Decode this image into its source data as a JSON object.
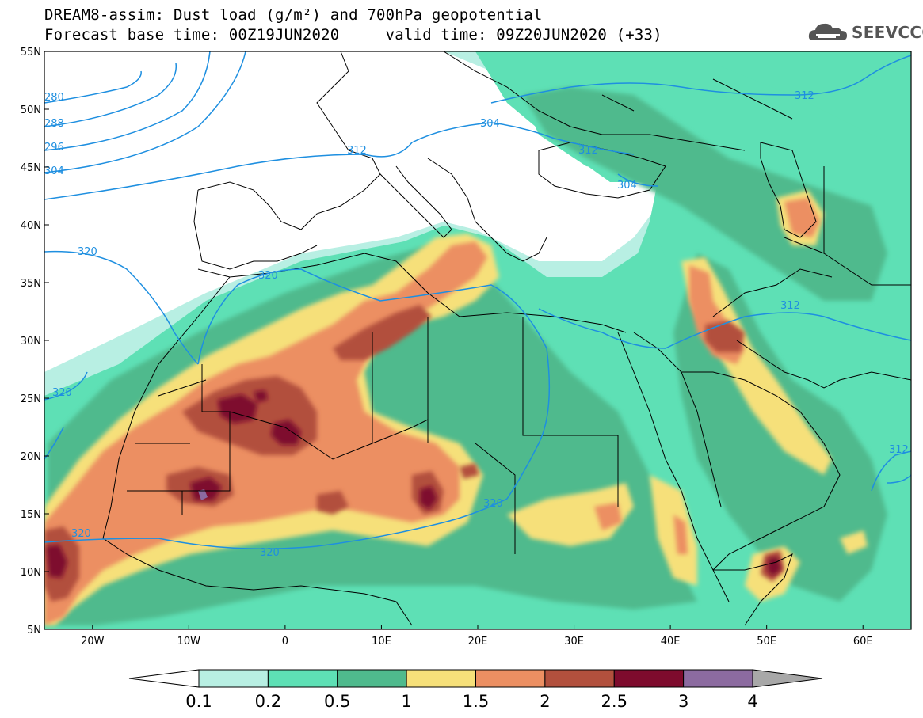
{
  "header": {
    "line1": "DREAM8-assim: Dust load (g/m²) and 700hPa geopotential",
    "line2": "Forecast base time: 00Z19JUN2020     valid time: 09Z20JUN2020 (+33)"
  },
  "brand": {
    "name": "SEEVCCC",
    "icon": "cloud-logo-icon"
  },
  "map": {
    "lat_range": [
      5,
      55
    ],
    "lon_range": [
      -25,
      65
    ],
    "lat_labels": [
      "55N",
      "50N",
      "45N",
      "40N",
      "35N",
      "30N",
      "25N",
      "20N",
      "15N",
      "10N",
      "5N"
    ],
    "lon_labels": [
      "20W",
      "10W",
      "0",
      "10E",
      "20E",
      "30E",
      "40E",
      "50E",
      "60E"
    ],
    "contour_labels": [
      "280",
      "288",
      "296",
      "304",
      "312",
      "320",
      "304",
      "312",
      "304",
      "312",
      "320",
      "320",
      "320",
      "320",
      "320",
      "312",
      "312"
    ]
  },
  "colorbar": {
    "labels": [
      "0.1",
      "0.2",
      "0.5",
      "1",
      "1.5",
      "2",
      "2.5",
      "3",
      "4"
    ],
    "colors": [
      "#ffffff",
      "#b8efe3",
      "#5ee0b5",
      "#4fba8d",
      "#f6e07a",
      "#ec8f62",
      "#b2503d",
      "#7e0b2d",
      "#8c6ba0",
      "#a8a8a8"
    ]
  },
  "palette": {
    "dust_01": "#b8efe3",
    "dust_02": "#5ee0b5",
    "dust_05": "#4fba8d",
    "dust_1": "#f6e07a",
    "dust_15": "#ec8f62",
    "dust_2": "#b2503d",
    "dust_25": "#7e0b2d",
    "dust_3": "#8c6ba0",
    "contour": "#1e8fe0"
  }
}
